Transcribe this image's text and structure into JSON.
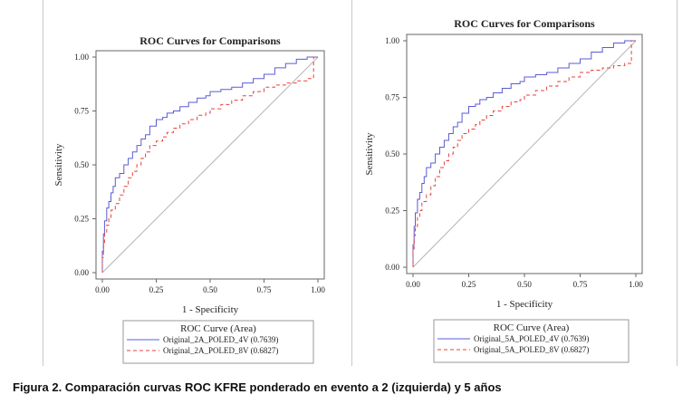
{
  "colors": {
    "series1": "#5b5bd6",
    "series2": "#e8423c",
    "diagonal": "#b4b4b4",
    "frame": "#666666"
  },
  "caption": "Figura 2. Comparación curvas ROC KFRE ponderado en evento a 2 (izquierda) y 5 años",
  "chart_data": [
    {
      "type": "line",
      "title": "ROC Curves for Comparisons",
      "xlabel": "1 - Specificity",
      "ylabel": "Sensitivity",
      "xlim": [
        0,
        1
      ],
      "ylim": [
        0,
        1
      ],
      "xticks": [
        "0.00",
        "0.25",
        "0.50",
        "0.75",
        "1.00"
      ],
      "yticks": [
        "0.00",
        "0.25",
        "0.50",
        "0.75",
        "1.00"
      ],
      "grid": false,
      "legend_position": "bottom",
      "legend_title": "ROC Curve (Area)",
      "series": [
        {
          "name": "Original_2A_POLED_4V (0.7639)",
          "style": "solid",
          "x": [
            0,
            0.005,
            0.01,
            0.02,
            0.03,
            0.04,
            0.05,
            0.06,
            0.08,
            0.1,
            0.12,
            0.14,
            0.16,
            0.18,
            0.2,
            0.22,
            0.25,
            0.28,
            0.3,
            0.33,
            0.36,
            0.4,
            0.44,
            0.48,
            0.5,
            0.55,
            0.6,
            0.65,
            0.7,
            0.75,
            0.8,
            0.85,
            0.9,
            0.95,
            1.0
          ],
          "y": [
            0,
            0.1,
            0.18,
            0.24,
            0.3,
            0.33,
            0.37,
            0.4,
            0.44,
            0.46,
            0.5,
            0.53,
            0.56,
            0.59,
            0.62,
            0.64,
            0.68,
            0.71,
            0.72,
            0.74,
            0.75,
            0.77,
            0.79,
            0.81,
            0.82,
            0.84,
            0.85,
            0.86,
            0.88,
            0.9,
            0.92,
            0.95,
            0.97,
            0.99,
            1.0
          ]
        },
        {
          "name": "Original_2A_POLED_8V (0.6827)",
          "style": "dashed",
          "x": [
            0,
            0.005,
            0.01,
            0.02,
            0.03,
            0.04,
            0.06,
            0.08,
            0.1,
            0.12,
            0.14,
            0.16,
            0.18,
            0.2,
            0.22,
            0.25,
            0.28,
            0.3,
            0.33,
            0.36,
            0.4,
            0.44,
            0.48,
            0.5,
            0.55,
            0.6,
            0.65,
            0.7,
            0.75,
            0.8,
            0.85,
            0.9,
            0.95,
            0.98,
            0.98,
            1.0
          ],
          "y": [
            0,
            0.07,
            0.14,
            0.18,
            0.22,
            0.25,
            0.29,
            0.32,
            0.36,
            0.4,
            0.44,
            0.47,
            0.5,
            0.53,
            0.56,
            0.59,
            0.61,
            0.63,
            0.65,
            0.67,
            0.69,
            0.71,
            0.73,
            0.74,
            0.76,
            0.78,
            0.8,
            0.82,
            0.84,
            0.86,
            0.87,
            0.88,
            0.89,
            0.9,
            0.95,
            1.0
          ]
        }
      ]
    },
    {
      "type": "line",
      "title": "ROC Curves for Comparisons",
      "xlabel": "1 - Specificity",
      "ylabel": "Sensitivity",
      "xlim": [
        0,
        1
      ],
      "ylim": [
        0,
        1
      ],
      "xticks": [
        "0.00",
        "0.25",
        "0.50",
        "0.75",
        "1.00"
      ],
      "yticks": [
        "0.00",
        "0.25",
        "0.50",
        "0.75",
        "1.00"
      ],
      "grid": false,
      "legend_position": "bottom",
      "legend_title": "ROC Curve (Area)",
      "series": [
        {
          "name": "Original_5A_POLED_4V (0.7639)",
          "style": "solid",
          "x": [
            0,
            0.005,
            0.01,
            0.02,
            0.03,
            0.04,
            0.05,
            0.06,
            0.08,
            0.1,
            0.12,
            0.14,
            0.16,
            0.18,
            0.2,
            0.22,
            0.25,
            0.28,
            0.3,
            0.33,
            0.36,
            0.4,
            0.44,
            0.48,
            0.5,
            0.55,
            0.6,
            0.65,
            0.7,
            0.75,
            0.8,
            0.85,
            0.9,
            0.95,
            1.0
          ],
          "y": [
            0,
            0.1,
            0.18,
            0.24,
            0.3,
            0.33,
            0.37,
            0.4,
            0.44,
            0.46,
            0.5,
            0.53,
            0.56,
            0.59,
            0.62,
            0.64,
            0.68,
            0.71,
            0.72,
            0.74,
            0.75,
            0.77,
            0.79,
            0.81,
            0.82,
            0.84,
            0.85,
            0.86,
            0.88,
            0.9,
            0.92,
            0.95,
            0.97,
            0.99,
            1.0
          ]
        },
        {
          "name": "Original_5A_POLED_8V (0.6827)",
          "style": "dashed",
          "x": [
            0,
            0.005,
            0.01,
            0.02,
            0.03,
            0.04,
            0.06,
            0.08,
            0.1,
            0.12,
            0.14,
            0.16,
            0.18,
            0.2,
            0.22,
            0.25,
            0.28,
            0.3,
            0.33,
            0.36,
            0.4,
            0.44,
            0.48,
            0.5,
            0.55,
            0.6,
            0.65,
            0.7,
            0.75,
            0.8,
            0.85,
            0.9,
            0.95,
            0.98,
            0.98,
            1.0
          ],
          "y": [
            0,
            0.07,
            0.14,
            0.18,
            0.22,
            0.25,
            0.29,
            0.32,
            0.36,
            0.4,
            0.44,
            0.47,
            0.5,
            0.53,
            0.56,
            0.59,
            0.61,
            0.63,
            0.65,
            0.67,
            0.69,
            0.71,
            0.73,
            0.74,
            0.76,
            0.78,
            0.8,
            0.82,
            0.84,
            0.86,
            0.87,
            0.88,
            0.89,
            0.9,
            0.95,
            1.0
          ]
        }
      ]
    }
  ]
}
